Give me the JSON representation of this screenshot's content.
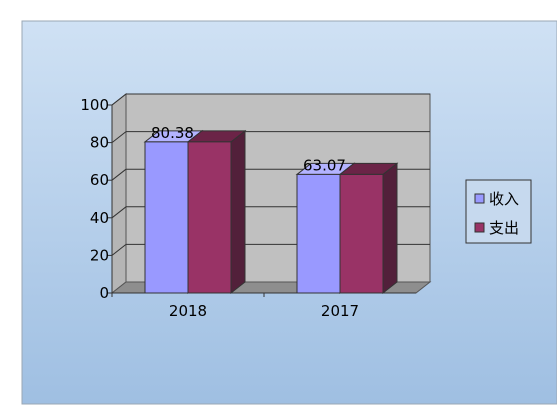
{
  "chart_data": {
    "type": "bar",
    "categories": [
      "2018",
      "2017"
    ],
    "series": [
      {
        "name": "收入",
        "values": [
          80.38,
          63.07
        ],
        "color": "#9999ff",
        "top": "#b3b3ff",
        "side": "#4d4d99"
      },
      {
        "name": "支出",
        "values": [
          80.38,
          63.07
        ],
        "color": "#993366",
        "top": "#6b2447",
        "side": "#52203a"
      }
    ],
    "data_labels": [
      "80.38",
      "63.07"
    ],
    "ylim": [
      0,
      100
    ],
    "yticks": [
      "0",
      "20",
      "40",
      "60",
      "80",
      "100"
    ],
    "grid": true,
    "legend": "right",
    "colors": {
      "background_top": "#cfe1f4",
      "background_bottom": "#9fbfe2",
      "wall": "#c0c0c0",
      "floor": "#8e8e8e"
    }
  }
}
